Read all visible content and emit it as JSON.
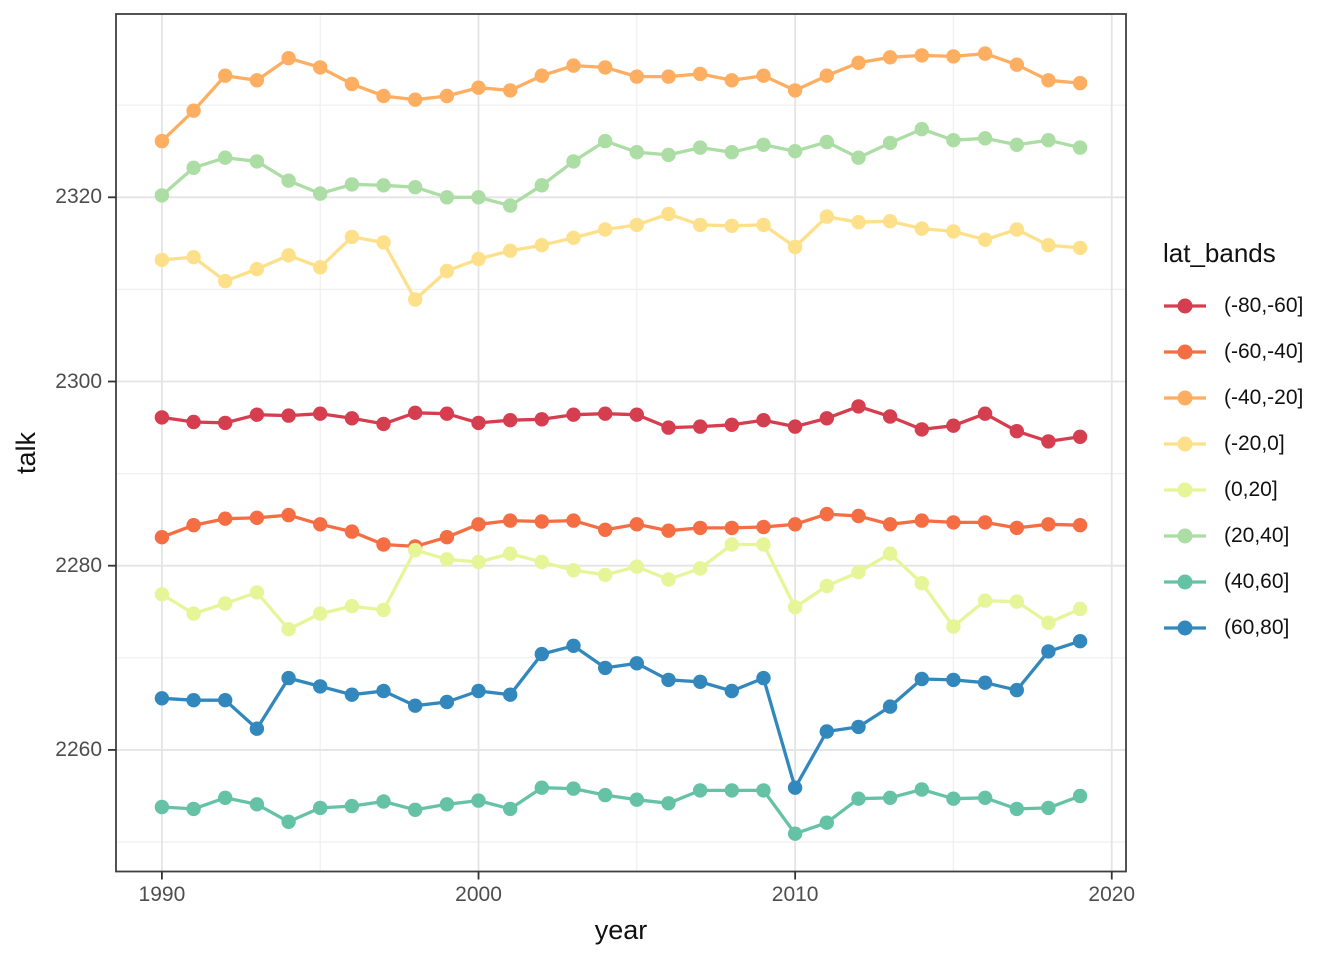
{
  "chart_data": {
    "type": "line",
    "title": "",
    "xlabel": "year",
    "ylabel": "talk",
    "legend_position": "right",
    "grid": true,
    "xlim": [
      1988.55,
      2020.45
    ],
    "ylim": [
      2246.8,
      2339.9
    ],
    "x_ticks": [
      1990,
      2000,
      2010,
      2020
    ],
    "y_ticks": [
      2260,
      2280,
      2300,
      2320
    ],
    "x_minor": [
      1995,
      2005,
      2015
    ],
    "y_minor": [
      2250,
      2270,
      2290,
      2310,
      2330
    ],
    "x": [
      1990,
      1991,
      1992,
      1993,
      1994,
      1995,
      1996,
      1997,
      1998,
      1999,
      2000,
      2001,
      2002,
      2003,
      2004,
      2005,
      2006,
      2007,
      2008,
      2009,
      2010,
      2011,
      2012,
      2013,
      2014,
      2015,
      2016,
      2017,
      2018,
      2019
    ],
    "series": [
      {
        "name": "(-80,-60]",
        "color": "#D53E4F",
        "values": [
          2296.1,
          2295.6,
          2295.5,
          2296.4,
          2296.3,
          2296.5,
          2296.0,
          2295.4,
          2296.6,
          2296.5,
          2295.5,
          2295.8,
          2295.9,
          2296.4,
          2296.5,
          2296.4,
          2295.0,
          2295.1,
          2295.3,
          2295.8,
          2295.1,
          2296.0,
          2297.3,
          2296.2,
          2294.8,
          2295.2,
          2296.5,
          2294.6,
          2293.5,
          2294.0
        ]
      },
      {
        "name": "(-60,-40]",
        "color": "#F46D43",
        "values": [
          2283.1,
          2284.4,
          2285.1,
          2285.2,
          2285.5,
          2284.5,
          2283.7,
          2282.3,
          2282.1,
          2283.1,
          2284.5,
          2284.9,
          2284.8,
          2284.9,
          2283.9,
          2284.5,
          2283.8,
          2284.1,
          2284.1,
          2284.2,
          2284.5,
          2285.6,
          2285.4,
          2284.5,
          2284.9,
          2284.7,
          2284.7,
          2284.1,
          2284.5,
          2284.4
        ]
      },
      {
        "name": "(-40,-20]",
        "color": "#FDAE61",
        "values": [
          2326.1,
          2329.4,
          2333.2,
          2332.7,
          2335.1,
          2334.1,
          2332.3,
          2331.0,
          2330.6,
          2331.0,
          2331.9,
          2331.6,
          2333.2,
          2334.3,
          2334.1,
          2333.1,
          2333.1,
          2333.4,
          2332.7,
          2333.2,
          2331.6,
          2333.2,
          2334.6,
          2335.2,
          2335.4,
          2335.3,
          2335.6,
          2334.4,
          2332.7,
          2332.4
        ]
      },
      {
        "name": "(-20,0]",
        "color": "#FEE08B",
        "values": [
          2313.2,
          2313.5,
          2310.9,
          2312.2,
          2313.7,
          2312.4,
          2315.7,
          2315.1,
          2308.9,
          2312.0,
          2313.3,
          2314.2,
          2314.8,
          2315.6,
          2316.5,
          2317.0,
          2318.2,
          2317.0,
          2316.9,
          2317.0,
          2314.6,
          2317.9,
          2317.3,
          2317.4,
          2316.6,
          2316.3,
          2315.4,
          2316.5,
          2314.8,
          2314.5
        ]
      },
      {
        "name": "(0,20]",
        "color": "#E6F598",
        "values": [
          2276.9,
          2274.8,
          2275.9,
          2277.1,
          2273.1,
          2274.8,
          2275.6,
          2275.2,
          2281.7,
          2280.7,
          2280.4,
          2281.3,
          2280.4,
          2279.5,
          2279.0,
          2279.9,
          2278.5,
          2279.7,
          2282.3,
          2282.3,
          2275.5,
          2277.8,
          2279.3,
          2281.3,
          2278.1,
          2273.4,
          2276.2,
          2276.1,
          2273.8,
          2275.3
        ]
      },
      {
        "name": "(20,40]",
        "color": "#ABDDA4",
        "values": [
          2320.2,
          2323.2,
          2324.3,
          2323.9,
          2321.8,
          2320.4,
          2321.4,
          2321.3,
          2321.1,
          2320.0,
          2320.0,
          2319.1,
          2321.3,
          2323.9,
          2326.1,
          2324.9,
          2324.6,
          2325.4,
          2324.9,
          2325.7,
          2325.0,
          2326.0,
          2324.3,
          2325.9,
          2327.4,
          2326.2,
          2326.4,
          2325.7,
          2326.2,
          2325.4
        ]
      },
      {
        "name": "(40,60]",
        "color": "#66C2A5",
        "values": [
          2253.8,
          2253.6,
          2254.8,
          2254.1,
          2252.2,
          2253.7,
          2253.9,
          2254.4,
          2253.5,
          2254.1,
          2254.5,
          2253.6,
          2255.9,
          2255.8,
          2255.1,
          2254.6,
          2254.2,
          2255.6,
          2255.6,
          2255.6,
          2250.9,
          2252.1,
          2254.7,
          2254.8,
          2255.7,
          2254.7,
          2254.8,
          2253.6,
          2253.7,
          2255.0
        ]
      },
      {
        "name": "(60,80]",
        "color": "#3288BD",
        "values": [
          2265.6,
          2265.4,
          2265.4,
          2262.3,
          2267.8,
          2266.9,
          2266.0,
          2266.4,
          2264.8,
          2265.2,
          2266.4,
          2266.0,
          2270.4,
          2271.3,
          2268.9,
          2269.4,
          2267.6,
          2267.4,
          2266.4,
          2267.8,
          2255.9,
          2262.0,
          2262.5,
          2264.7,
          2267.7,
          2267.6,
          2267.3,
          2266.5,
          2270.7,
          2271.8
        ]
      }
    ]
  },
  "legend": {
    "title": "lat_bands"
  },
  "style": {
    "panel_border_color": "#404040",
    "major_grid_color": "#e4e4e4",
    "minor_grid_color": "#efefef",
    "tick_color": "#333333",
    "tick_label_color": "#4d4d4d"
  }
}
